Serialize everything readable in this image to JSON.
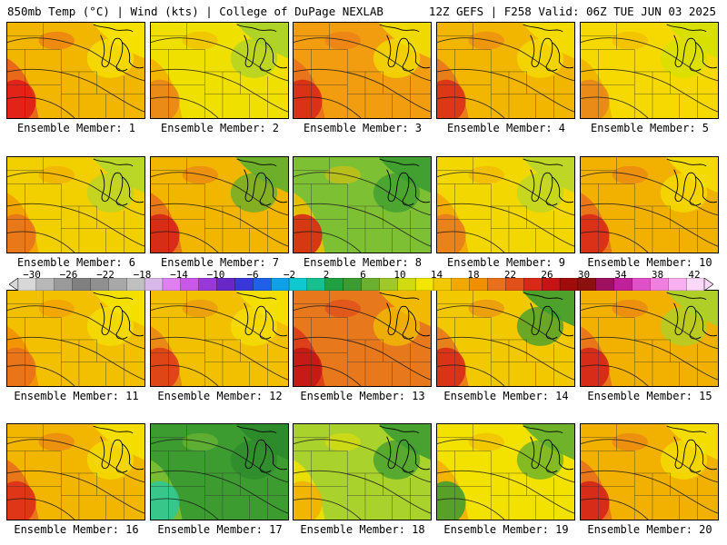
{
  "header": {
    "left": "850mb Temp (°C) | Wind (kts) | College of DuPage NEXLAB",
    "right": "12Z GEFS | F258 Valid: 06Z TUE JUN 03 2025"
  },
  "label_prefix": "Ensemble Member: ",
  "members": [
    {
      "number": "1",
      "bg": "#f2b500",
      "warm": "#e8601e",
      "cool": "#f6e400",
      "hot": "#e01818"
    },
    {
      "number": "2",
      "bg": "#f0e000",
      "warm": "#f2b000",
      "cool": "#a9d22c",
      "hot": "#e8841a"
    },
    {
      "number": "3",
      "bg": "#f29d0f",
      "warm": "#e8701c",
      "cool": "#f0e000",
      "hot": "#d82618"
    },
    {
      "number": "4",
      "bg": "#f2b500",
      "warm": "#e8781c",
      "cool": "#f3df00",
      "hot": "#dc2a18"
    },
    {
      "number": "5",
      "bg": "#f5d900",
      "warm": "#f2b000",
      "cool": "#d4e000",
      "hot": "#e8841a"
    },
    {
      "number": "6",
      "bg": "#f2d000",
      "warm": "#f2a000",
      "cool": "#b4d62a",
      "hot": "#e8701c"
    },
    {
      "number": "7",
      "bg": "#f2b500",
      "warm": "#e8701c",
      "cool": "#5fae2e",
      "hot": "#d42018"
    },
    {
      "number": "8",
      "bg": "#7ec034",
      "warm": "#f0c000",
      "cool": "#3c9c30",
      "hot": "#d42018"
    },
    {
      "number": "9",
      "bg": "#f2d800",
      "warm": "#f2a800",
      "cool": "#b8d62a",
      "hot": "#e87a1c"
    },
    {
      "number": "10",
      "bg": "#f2b000",
      "warm": "#e8701c",
      "cool": "#f3df00",
      "hot": "#d82618"
    },
    {
      "number": "11",
      "bg": "#f2c000",
      "warm": "#f29000",
      "cool": "#f3e200",
      "hot": "#e8701c"
    },
    {
      "number": "12",
      "bg": "#f2c000",
      "warm": "#e8841a",
      "cool": "#f3e200",
      "hot": "#dc3a18"
    },
    {
      "number": "13",
      "bg": "#e8781c",
      "warm": "#dc3818",
      "cool": "#f2c000",
      "hot": "#c41414"
    },
    {
      "number": "14",
      "bg": "#f2c800",
      "warm": "#e8781c",
      "cool": "#3c9c30",
      "hot": "#d82618"
    },
    {
      "number": "15",
      "bg": "#f2b000",
      "warm": "#e8701c",
      "cool": "#a9d22c",
      "hot": "#d42018"
    },
    {
      "number": "16",
      "bg": "#f2b500",
      "warm": "#e8701c",
      "cool": "#f3e200",
      "hot": "#dc2a18"
    },
    {
      "number": "17",
      "bg": "#3c9c30",
      "warm": "#7ec034",
      "cool": "#2c8a2c",
      "hot": "#2ec89a"
    },
    {
      "number": "18",
      "bg": "#a9d22c",
      "warm": "#f0e000",
      "cool": "#3c9c30",
      "hot": "#f2b000"
    },
    {
      "number": "19",
      "bg": "#f3e200",
      "warm": "#f2b000",
      "cool": "#5fae2e",
      "hot": "#3c9c30"
    },
    {
      "number": "20",
      "bg": "#f2b000",
      "warm": "#e8701c",
      "cool": "#f3e200",
      "hot": "#d42018"
    }
  ],
  "colorbar": {
    "ticks": [
      "−30",
      "−26",
      "−22",
      "−18",
      "−14",
      "−10",
      "−6",
      "−2",
      "2",
      "6",
      "10",
      "14",
      "18",
      "22",
      "26",
      "30",
      "34",
      "38",
      "42"
    ],
    "colors": [
      "#d8d8d8",
      "#b8b8b8",
      "#9a9a9a",
      "#808080",
      "#909090",
      "#a8a8a8",
      "#c0c0c0",
      "#d8b8e8",
      "#e080f0",
      "#c858e8",
      "#9838d8",
      "#6828c8",
      "#3838d8",
      "#2060e8",
      "#10a0e8",
      "#10c8d0",
      "#18c090",
      "#20a040",
      "#3c9c30",
      "#6cb030",
      "#a0c828",
      "#d0dc10",
      "#f3e600",
      "#f2c800",
      "#f2a800",
      "#f09000",
      "#e8701c",
      "#e05018",
      "#d82818",
      "#c41414",
      "#a00c0c",
      "#8c1010",
      "#a01060",
      "#c0209a",
      "#e050c8",
      "#f080e0",
      "#f8b0f0",
      "#fcd8f8"
    ]
  }
}
